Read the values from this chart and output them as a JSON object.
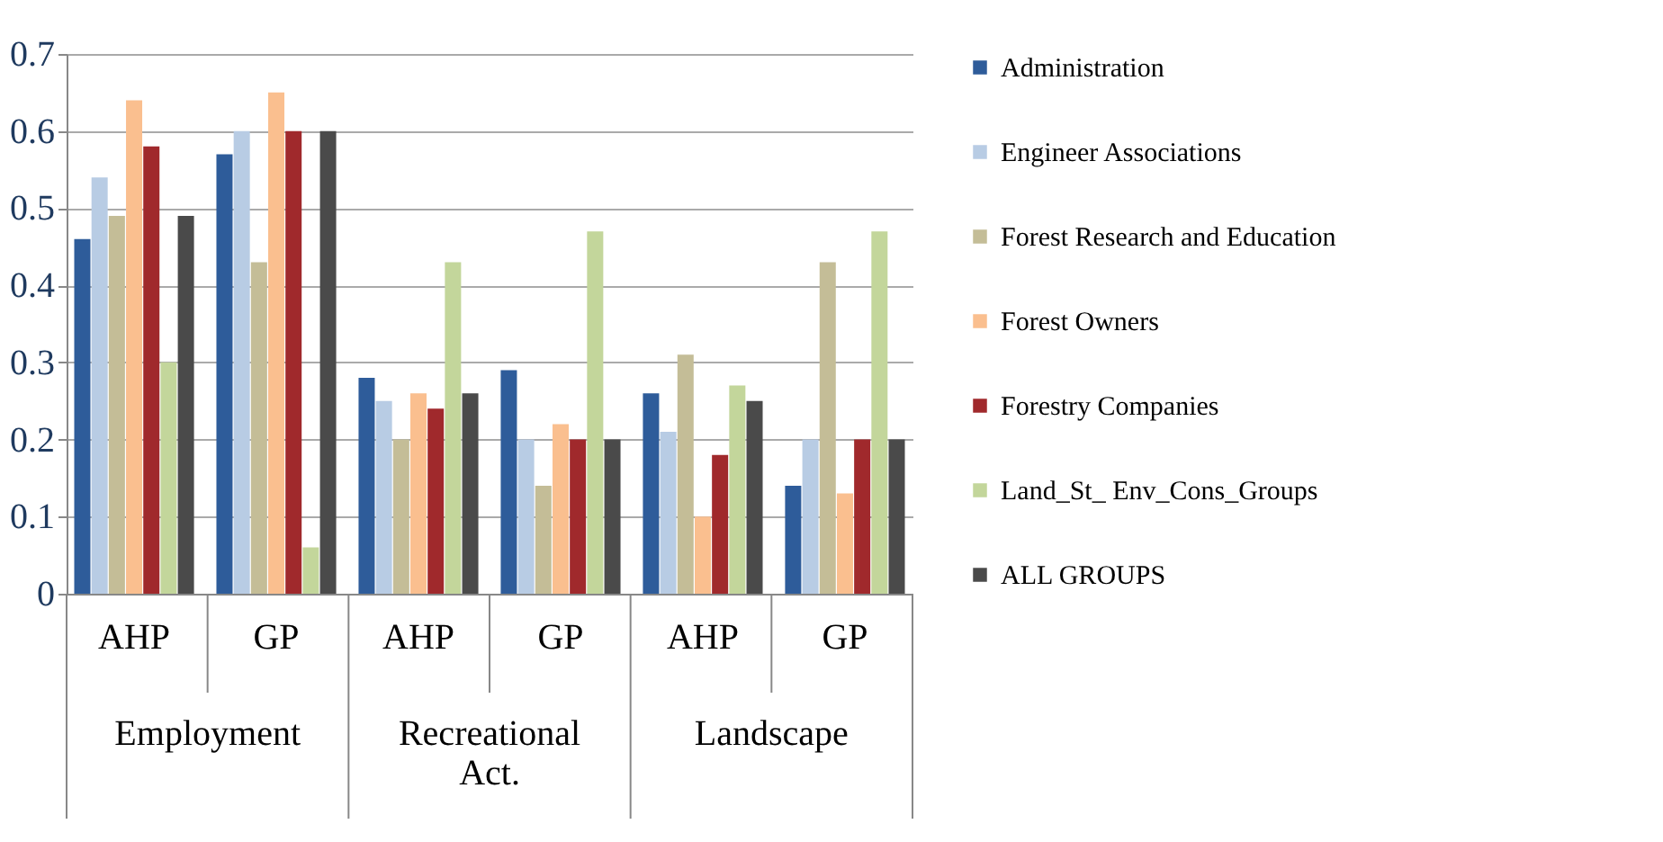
{
  "chart_data": {
    "type": "bar",
    "categories": [
      "AHP",
      "GP",
      "AHP",
      "GP",
      "AHP",
      "GP"
    ],
    "annotations": [
      "Employment",
      "Recreational Act.",
      "Landscape"
    ],
    "ylim": [
      0,
      0.7
    ],
    "yticks": [
      {
        "value": 0,
        "label": "0"
      },
      0.1,
      0.2,
      0.3,
      0.4,
      0.5,
      0.6,
      0.7
    ],
    "grid": "y",
    "legend": "right",
    "series": [
      {
        "name": "Administration",
        "color": "#2e5c9a",
        "values": [
          0.46,
          0.57,
          0.28,
          0.29,
          0.26,
          0.14
        ]
      },
      {
        "name": "Engineer  Associations",
        "color": "#b8cce4",
        "values": [
          0.54,
          0.6,
          0.25,
          0.2,
          0.21,
          0.2
        ]
      },
      {
        "name": "Forest Research and Education",
        "color": "#c4bd97",
        "values": [
          0.49,
          0.43,
          0.2,
          0.14,
          0.31,
          0.43
        ]
      },
      {
        "name": "Forest Owners",
        "color": "#fabf8f",
        "values": [
          0.64,
          0.65,
          0.26,
          0.22,
          0.1,
          0.13
        ]
      },
      {
        "name": "Forestry Companies",
        "color": "#a0292c",
        "values": [
          0.58,
          0.6,
          0.24,
          0.2,
          0.18,
          0.2
        ]
      },
      {
        "name": "Land_St_ Env_Cons_Groups",
        "color": "#c3d69b",
        "values": [
          0.3,
          0.06,
          0.43,
          0.47,
          0.27,
          0.47
        ]
      },
      {
        "name": "ALL  GROUPS",
        "color": "#4a4a4a",
        "values": [
          0.49,
          0.6,
          0.26,
          0.2,
          0.25,
          0.2
        ]
      }
    ]
  }
}
